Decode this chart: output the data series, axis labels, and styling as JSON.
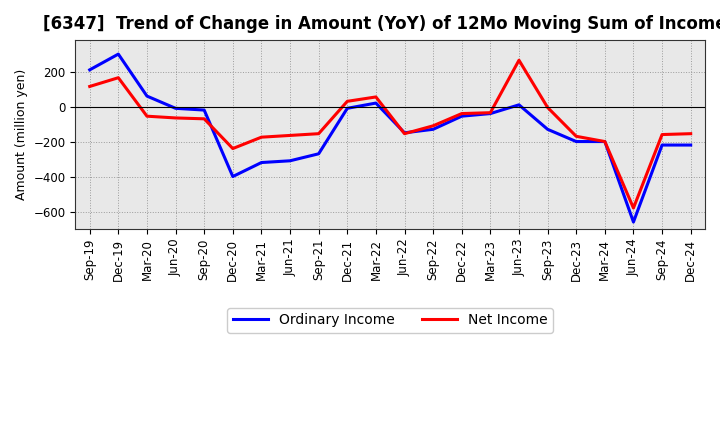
{
  "title": "[6347]  Trend of Change in Amount (YoY) of 12Mo Moving Sum of Incomes",
  "ylabel": "Amount (million yen)",
  "x_labels": [
    "Sep-19",
    "Dec-19",
    "Mar-20",
    "Jun-20",
    "Sep-20",
    "Dec-20",
    "Mar-21",
    "Jun-21",
    "Sep-21",
    "Dec-21",
    "Mar-22",
    "Jun-22",
    "Sep-22",
    "Dec-22",
    "Mar-23",
    "Jun-23",
    "Sep-23",
    "Dec-23",
    "Mar-24",
    "Jun-24",
    "Sep-24",
    "Dec-24"
  ],
  "ordinary_income": [
    210,
    300,
    60,
    -10,
    -20,
    -400,
    -320,
    -310,
    -270,
    -10,
    20,
    -150,
    -130,
    -55,
    -40,
    10,
    -130,
    -200,
    -200,
    -660,
    -220,
    -220
  ],
  "net_income": [
    115,
    165,
    -55,
    -65,
    -70,
    -240,
    -175,
    -165,
    -155,
    30,
    55,
    -155,
    -110,
    -40,
    -35,
    265,
    -5,
    -170,
    -200,
    -580,
    -160,
    -155
  ],
  "ordinary_color": "#0000ff",
  "net_color": "#ff0000",
  "ylim": [
    -700,
    380
  ],
  "yticks": [
    -600,
    -400,
    -200,
    0,
    200
  ],
  "plot_bg_color": "#e8e8e8",
  "fig_bg_color": "#ffffff",
  "grid_color": "#888888",
  "legend_fontsize": 10,
  "title_fontsize": 12,
  "tick_fontsize": 8.5,
  "ylabel_fontsize": 9,
  "linewidth": 2.2
}
